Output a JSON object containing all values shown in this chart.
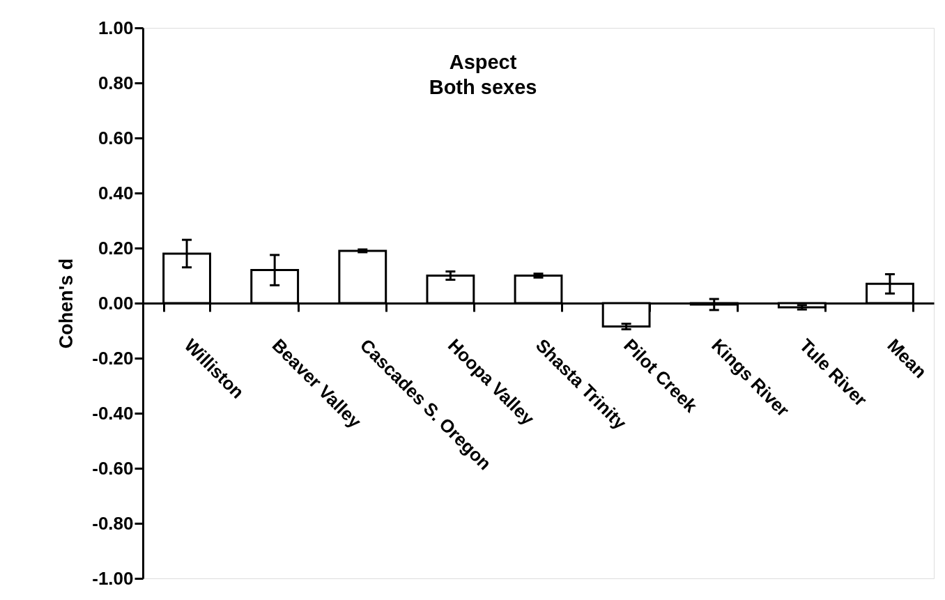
{
  "chart_data": {
    "type": "bar",
    "title": "Aspect\nBoth sexes",
    "ylabel": "Cohen's d",
    "categories": [
      "Williston",
      "Beaver Valley",
      "Cascades S. Oregon",
      "Hoopa Valley",
      "Shasta Trinity",
      "Pilot Creek",
      "Kings River",
      "Tule River",
      "Mean"
    ],
    "values": [
      0.18,
      0.12,
      0.19,
      0.1,
      0.1,
      -0.085,
      -0.005,
      -0.015,
      0.07
    ],
    "errors": [
      0.05,
      0.055,
      0.005,
      0.015,
      0.007,
      0.01,
      0.02,
      0.008,
      0.035
    ],
    "color": "#ffffff",
    "ylim": [
      -1.0,
      1.0
    ],
    "yticks": [
      {
        "value": -1.0,
        "label": "-1.00"
      },
      {
        "value": -0.8,
        "label": "-0.80"
      },
      {
        "value": -0.6,
        "label": "-0.60"
      },
      {
        "value": -0.4,
        "label": "-0.40"
      },
      {
        "value": -0.2,
        "label": "-0.20"
      },
      {
        "value": 0.0,
        "label": "0.00"
      },
      {
        "value": 0.2,
        "label": "0.20"
      },
      {
        "value": 0.4,
        "label": "0.40"
      },
      {
        "value": 0.6,
        "label": "0.60"
      },
      {
        "value": 0.8,
        "label": "0.80"
      },
      {
        "value": 1.0,
        "label": "1.00"
      }
    ],
    "grid": false
  }
}
